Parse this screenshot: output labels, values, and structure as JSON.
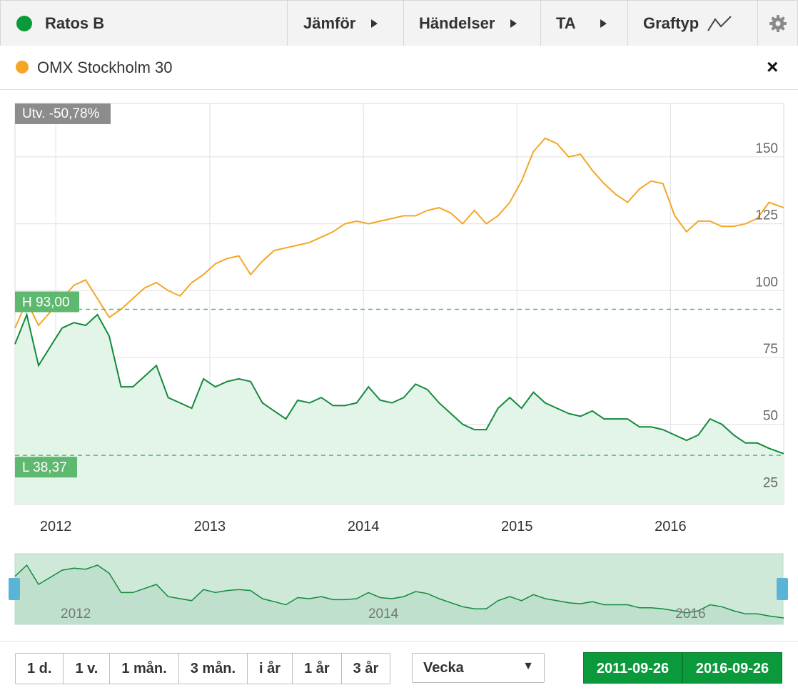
{
  "header": {
    "stock_name": "Ratos B",
    "menu": [
      {
        "label": "Jämför"
      },
      {
        "label": "Händelser"
      },
      {
        "label": "TA"
      },
      {
        "label": "Graftyp"
      }
    ]
  },
  "compare": {
    "label": "OMX Stockholm 30",
    "close": "×"
  },
  "colors": {
    "stock": "#138a3d",
    "index": "#f5a623",
    "fill": "#e3f4e9",
    "accent": "#0a9a3b"
  },
  "badges": {
    "change": "Utv. -50,78%",
    "high": "H 93,00",
    "low": "L 38,37"
  },
  "chart_data": {
    "type": "line",
    "x_range": [
      "2011-09-26",
      "2016-09-26"
    ],
    "ylim": [
      20,
      170
    ],
    "y_ticks": [
      25,
      50,
      75,
      100,
      125,
      150
    ],
    "x_ticks": [
      "2012",
      "2013",
      "2014",
      "2015",
      "2016"
    ],
    "grid": true,
    "high_line": 93.0,
    "low_line": 38.37,
    "series": [
      {
        "name": "Ratos B",
        "x": [
          "2011-09-26",
          "2011-10-24",
          "2011-11-21",
          "2011-12-19",
          "2012-01-16",
          "2012-02-13",
          "2012-03-12",
          "2012-04-09",
          "2012-05-07",
          "2012-06-04",
          "2012-07-02",
          "2012-07-30",
          "2012-08-27",
          "2012-09-24",
          "2012-10-22",
          "2012-11-19",
          "2012-12-17",
          "2013-01-14",
          "2013-02-11",
          "2013-03-11",
          "2013-04-08",
          "2013-05-06",
          "2013-06-03",
          "2013-07-01",
          "2013-07-29",
          "2013-08-26",
          "2013-09-23",
          "2013-10-21",
          "2013-11-18",
          "2013-12-16",
          "2014-01-13",
          "2014-02-10",
          "2014-03-10",
          "2014-04-07",
          "2014-05-05",
          "2014-06-02",
          "2014-06-30",
          "2014-07-28",
          "2014-08-25",
          "2014-09-22",
          "2014-10-20",
          "2014-11-17",
          "2014-12-15",
          "2015-01-12",
          "2015-02-09",
          "2015-03-09",
          "2015-04-06",
          "2015-05-04",
          "2015-06-01",
          "2015-06-29",
          "2015-07-27",
          "2015-08-24",
          "2015-09-21",
          "2015-10-19",
          "2015-11-16",
          "2015-12-14",
          "2016-01-11",
          "2016-02-08",
          "2016-03-07",
          "2016-04-04",
          "2016-05-02",
          "2016-05-30",
          "2016-06-27",
          "2016-07-25",
          "2016-08-22",
          "2016-09-26"
        ],
        "values": [
          80,
          91,
          72,
          79,
          86,
          88,
          87,
          91,
          83,
          64,
          64,
          68,
          72,
          60,
          58,
          56,
          67,
          64,
          66,
          67,
          66,
          58,
          55,
          52,
          59,
          58,
          60,
          57,
          57,
          58,
          64,
          59,
          58,
          60,
          65,
          63,
          58,
          54,
          50,
          48,
          48,
          56,
          60,
          56,
          62,
          58,
          56,
          54,
          53,
          55,
          52,
          52,
          52,
          49,
          49,
          48,
          46,
          44,
          46,
          52,
          50,
          46,
          43,
          43,
          41,
          39
        ]
      },
      {
        "name": "OMX Stockholm 30",
        "x": [
          "2011-09-26",
          "2011-10-24",
          "2011-11-21",
          "2011-12-19",
          "2012-01-16",
          "2012-02-13",
          "2012-03-12",
          "2012-04-09",
          "2012-05-07",
          "2012-06-04",
          "2012-07-02",
          "2012-07-30",
          "2012-08-27",
          "2012-09-24",
          "2012-10-22",
          "2012-11-19",
          "2012-12-17",
          "2013-01-14",
          "2013-02-11",
          "2013-03-11",
          "2013-04-08",
          "2013-05-06",
          "2013-06-03",
          "2013-07-01",
          "2013-07-29",
          "2013-08-26",
          "2013-09-23",
          "2013-10-21",
          "2013-11-18",
          "2013-12-16",
          "2014-01-13",
          "2014-02-10",
          "2014-03-10",
          "2014-04-07",
          "2014-05-05",
          "2014-06-02",
          "2014-06-30",
          "2014-07-28",
          "2014-08-25",
          "2014-09-22",
          "2014-10-20",
          "2014-11-17",
          "2014-12-15",
          "2015-01-12",
          "2015-02-09",
          "2015-03-09",
          "2015-04-06",
          "2015-05-04",
          "2015-06-01",
          "2015-06-29",
          "2015-07-27",
          "2015-08-24",
          "2015-09-21",
          "2015-10-19",
          "2015-11-16",
          "2015-12-14",
          "2016-01-11",
          "2016-02-08",
          "2016-03-07",
          "2016-04-04",
          "2016-05-02",
          "2016-05-30",
          "2016-06-27",
          "2016-07-25",
          "2016-08-22",
          "2016-09-26"
        ],
        "values": [
          86,
          96,
          87,
          92,
          97,
          102,
          104,
          97,
          90,
          93,
          97,
          101,
          103,
          100,
          98,
          103,
          106,
          110,
          112,
          113,
          106,
          111,
          115,
          116,
          117,
          118,
          120,
          122,
          125,
          126,
          125,
          126,
          127,
          128,
          128,
          130,
          131,
          129,
          125,
          130,
          125,
          128,
          133,
          141,
          152,
          157,
          155,
          150,
          151,
          145,
          140,
          136,
          133,
          138,
          141,
          140,
          128,
          122,
          126,
          126,
          124,
          124,
          125,
          127,
          133,
          131
        ]
      }
    ],
    "navigator": {
      "x_labels": [
        "2012",
        "2014",
        "2016"
      ]
    }
  },
  "range_buttons": [
    "1 d.",
    "1 v.",
    "1 mån.",
    "3 mån.",
    "i år",
    "1 år",
    "3 år"
  ],
  "interval_select": {
    "value": "Vecka",
    "caret": "▼"
  },
  "date_range": {
    "from": "2011-09-26",
    "to": "2016-09-26"
  }
}
